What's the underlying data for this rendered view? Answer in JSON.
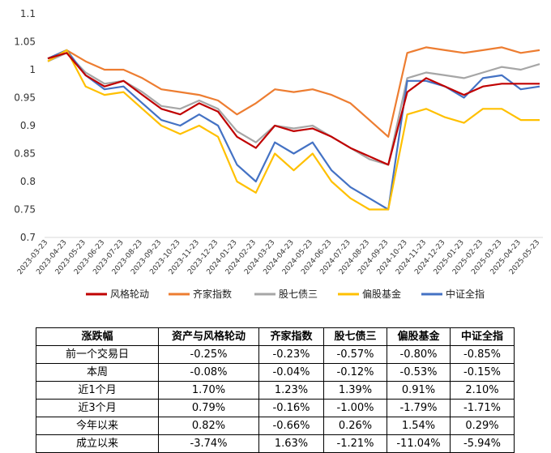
{
  "chart_data": {
    "type": "line",
    "title": "",
    "xlabel": "",
    "ylabel": "",
    "ylim": [
      0.7,
      1.1
    ],
    "yticks": [
      "0.7",
      "0.75",
      "0.8",
      "0.85",
      "0.9",
      "0.95",
      "1",
      "1.05",
      "1.1"
    ],
    "grid": false,
    "legend_position": "bottom",
    "x": [
      "2023-03-23",
      "2023-04-23",
      "2023-05-23",
      "2023-06-23",
      "2023-07-23",
      "2023-08-23",
      "2023-09-23",
      "2023-10-23",
      "2023-11-23",
      "2023-12-23",
      "2024-01-23",
      "2024-02-23",
      "2024-03-23",
      "2024-04-23",
      "2024-05-23",
      "2024-06-23",
      "2024-07-23",
      "2024-08-23",
      "2024-09-23",
      "2024-10-23",
      "2024-11-23",
      "2024-12-23",
      "2025-01-23",
      "2025-02-23",
      "2025-03-23",
      "2025-04-23",
      "2025-05-23"
    ],
    "series": [
      {
        "name": "风格轮动",
        "color": "#c00000",
        "values": [
          1.02,
          1.03,
          0.99,
          0.97,
          0.98,
          0.955,
          0.93,
          0.92,
          0.94,
          0.925,
          0.88,
          0.86,
          0.9,
          0.89,
          0.895,
          0.88,
          0.86,
          0.845,
          0.83,
          0.96,
          0.985,
          0.97,
          0.955,
          0.97,
          0.975,
          0.975,
          0.975
        ]
      },
      {
        "name": "齐家指数",
        "color": "#ed7d31",
        "values": [
          1.02,
          1.035,
          1.015,
          1.0,
          1.0,
          0.985,
          0.965,
          0.96,
          0.955,
          0.945,
          0.92,
          0.94,
          0.965,
          0.96,
          0.965,
          0.955,
          0.94,
          0.91,
          0.88,
          1.03,
          1.04,
          1.035,
          1.03,
          1.035,
          1.04,
          1.03,
          1.035
        ]
      },
      {
        "name": "股七债三",
        "color": "#a6a6a6",
        "values": [
          1.015,
          1.03,
          0.995,
          0.975,
          0.98,
          0.96,
          0.935,
          0.93,
          0.945,
          0.93,
          0.89,
          0.87,
          0.9,
          0.895,
          0.9,
          0.88,
          0.86,
          0.84,
          0.83,
          0.985,
          0.995,
          0.99,
          0.985,
          0.995,
          1.005,
          1.0,
          1.01
        ]
      },
      {
        "name": "偏股基金",
        "color": "#ffc000",
        "values": [
          1.015,
          1.035,
          0.97,
          0.955,
          0.96,
          0.93,
          0.9,
          0.885,
          0.9,
          0.88,
          0.8,
          0.78,
          0.85,
          0.82,
          0.85,
          0.8,
          0.77,
          0.75,
          0.75,
          0.92,
          0.93,
          0.915,
          0.905,
          0.93,
          0.93,
          0.91,
          0.91
        ]
      },
      {
        "name": "中证全指",
        "color": "#4472c4",
        "values": [
          1.02,
          1.035,
          0.99,
          0.965,
          0.97,
          0.94,
          0.91,
          0.9,
          0.92,
          0.9,
          0.83,
          0.8,
          0.87,
          0.85,
          0.87,
          0.82,
          0.79,
          0.77,
          0.75,
          0.98,
          0.98,
          0.97,
          0.95,
          0.985,
          0.99,
          0.965,
          0.97
        ]
      }
    ]
  },
  "table": {
    "headers": [
      "涨跌幅",
      "资产与风格轮动",
      "齐家指数",
      "股七债三",
      "偏股基金",
      "中证全指"
    ],
    "rows": [
      [
        "前一个交易日",
        "-0.25%",
        "-0.23%",
        "-0.57%",
        "-0.80%",
        "-0.85%"
      ],
      [
        "本周",
        "-0.08%",
        "-0.04%",
        "-0.12%",
        "-0.53%",
        "-0.15%"
      ],
      [
        "近1个月",
        "1.70%",
        "1.23%",
        "1.39%",
        "0.91%",
        "2.10%"
      ],
      [
        "近3个月",
        "0.79%",
        "-0.16%",
        "-1.00%",
        "-1.79%",
        "-1.71%"
      ],
      [
        "今年以来",
        "0.82%",
        "-0.66%",
        "0.26%",
        "1.54%",
        "0.29%"
      ],
      [
        "成立以来",
        "-3.74%",
        "1.63%",
        "-1.21%",
        "-11.04%",
        "-5.94%"
      ]
    ]
  }
}
